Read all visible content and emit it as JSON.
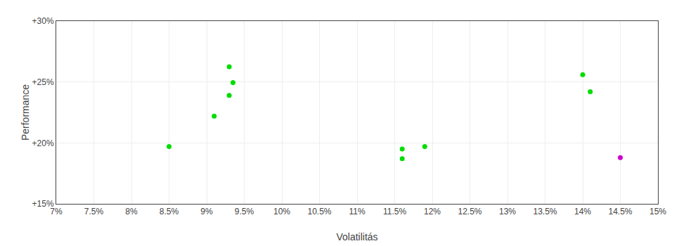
{
  "chart_data": {
    "type": "scatter",
    "xlabel": "Volatilitás",
    "ylabel": "Performance",
    "series": [
      {
        "color": "#00dd00",
        "x": [
          0.093,
          0.0935,
          0.093,
          0.091,
          0.085,
          0.116,
          0.116,
          0.119,
          0.14,
          0.141
        ],
        "values": [
          0.2625,
          0.2495,
          0.239,
          0.222,
          0.197,
          0.195,
          0.187,
          0.197,
          0.256,
          0.242
        ]
      },
      {
        "color": "#cc00cc",
        "x": [
          0.145
        ],
        "values": [
          0.188
        ]
      }
    ],
    "xlim": [
      0.07,
      0.15
    ],
    "ylim": [
      0.15,
      0.3
    ],
    "xticks": [
      {
        "value": 0.07,
        "label": "7%"
      },
      {
        "value": 0.075,
        "label": "7.5%"
      },
      {
        "value": 0.08,
        "label": "8%"
      },
      {
        "value": 0.085,
        "label": "8.5%"
      },
      {
        "value": 0.09,
        "label": "9%"
      },
      {
        "value": 0.095,
        "label": "9.5%"
      },
      {
        "value": 0.1,
        "label": "10%"
      },
      {
        "value": 0.105,
        "label": "10.5%"
      },
      {
        "value": 0.11,
        "label": "11%"
      },
      {
        "value": 0.115,
        "label": "11.5%"
      },
      {
        "value": 0.12,
        "label": "12%"
      },
      {
        "value": 0.125,
        "label": "12.5%"
      },
      {
        "value": 0.13,
        "label": "13%"
      },
      {
        "value": 0.135,
        "label": "13.5%"
      },
      {
        "value": 0.14,
        "label": "14%"
      },
      {
        "value": 0.145,
        "label": "14.5%"
      },
      {
        "value": 0.15,
        "label": "15%"
      }
    ],
    "yticks": [
      {
        "value": 0.15,
        "label": "+15%"
      },
      {
        "value": 0.2,
        "label": "+20%"
      },
      {
        "value": 0.25,
        "label": "+25%"
      },
      {
        "value": 0.3,
        "label": "+30%"
      }
    ],
    "grid": true
  }
}
